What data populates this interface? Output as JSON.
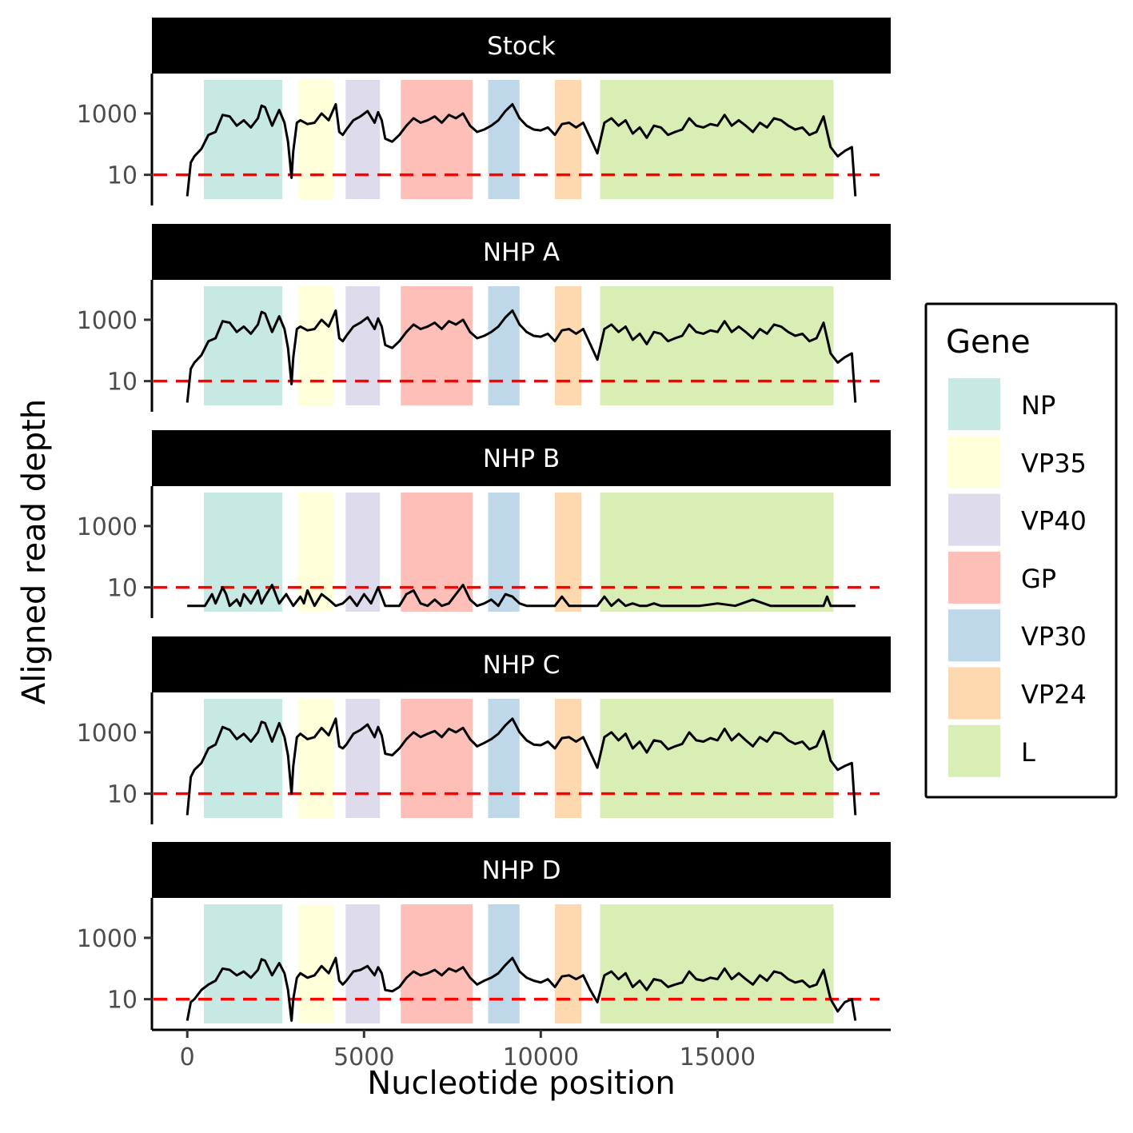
{
  "chart_data": {
    "type": "line",
    "y_scale": "log10",
    "threshold": 10,
    "threshold_color": "#ff0000",
    "xlim": [
      -1000,
      19900
    ],
    "ylim": [
      1,
      20000
    ],
    "x_ticks": [
      0,
      5000,
      10000,
      15000
    ],
    "x_tick_labels": [
      "0",
      "5000",
      "10000",
      "15000"
    ],
    "y_ticks": [
      10,
      1000
    ],
    "y_tick_labels": [
      "10",
      "1000"
    ],
    "xlabel": "Nucleotide position",
    "ylabel": "Aligned read depth",
    "legend": {
      "title": "Gene",
      "position": "right"
    },
    "genes": [
      {
        "name": "NP",
        "start": 470,
        "end": 2690,
        "color": "#8dd3c7"
      },
      {
        "name": "VP35",
        "start": 3130,
        "end": 4150,
        "color": "#ffffb3"
      },
      {
        "name": "VP40",
        "start": 4480,
        "end": 5450,
        "color": "#bebada"
      },
      {
        "name": "GP",
        "start": 6040,
        "end": 8070,
        "color": "#fb8072"
      },
      {
        "name": "VP30",
        "start": 8510,
        "end": 9400,
        "color": "#80b1d3"
      },
      {
        "name": "VP24",
        "start": 10400,
        "end": 11150,
        "color": "#fdb462"
      },
      {
        "name": "L",
        "start": 11680,
        "end": 18280,
        "color": "#b3de69"
      }
    ],
    "panels": [
      {
        "name": "Stock",
        "x": [
          0,
          100,
          200,
          400,
          600,
          800,
          1000,
          1200,
          1400,
          1600,
          1800,
          2000,
          2100,
          2200,
          2400,
          2600,
          2750,
          2850,
          2950,
          3000,
          3100,
          3200,
          3400,
          3600,
          3800,
          4000,
          4200,
          4300,
          4400,
          4500,
          4700,
          4900,
          5100,
          5300,
          5400,
          5500,
          5600,
          5800,
          6000,
          6200,
          6400,
          6600,
          6800,
          7000,
          7200,
          7400,
          7600,
          7800,
          8000,
          8200,
          8400,
          8600,
          8800,
          9000,
          9200,
          9400,
          9600,
          9800,
          10000,
          10200,
          10400,
          10600,
          10800,
          11000,
          11200,
          11400,
          11600,
          11800,
          12000,
          12200,
          12400,
          12600,
          12800,
          13000,
          13200,
          13400,
          13600,
          13800,
          14000,
          14200,
          14400,
          14600,
          14800,
          15000,
          15200,
          15400,
          15600,
          15800,
          16000,
          16200,
          16400,
          16600,
          16800,
          17000,
          17200,
          17400,
          17600,
          17800,
          18000,
          18200,
          18400,
          18600,
          18800,
          18900
        ],
        "y": [
          2,
          25,
          40,
          70,
          200,
          250,
          900,
          800,
          400,
          600,
          350,
          700,
          1800,
          1600,
          400,
          1300,
          500,
          120,
          8,
          60,
          500,
          600,
          450,
          500,
          1000,
          600,
          2000,
          250,
          200,
          300,
          600,
          800,
          1200,
          500,
          1100,
          600,
          150,
          120,
          200,
          400,
          700,
          500,
          600,
          800,
          500,
          900,
          700,
          1000,
          400,
          250,
          300,
          400,
          600,
          1200,
          2000,
          700,
          400,
          300,
          280,
          350,
          200,
          450,
          500,
          350,
          500,
          160,
          50,
          500,
          700,
          400,
          600,
          220,
          350,
          160,
          400,
          350,
          200,
          250,
          300,
          700,
          400,
          350,
          450,
          400,
          900,
          400,
          600,
          400,
          250,
          500,
          350,
          700,
          600,
          400,
          300,
          350,
          200,
          250,
          800,
          80,
          40,
          60,
          80,
          2
        ]
      },
      {
        "name": "NHP A",
        "x": [
          0,
          100,
          200,
          400,
          600,
          800,
          1000,
          1200,
          1400,
          1600,
          1800,
          2000,
          2100,
          2200,
          2400,
          2600,
          2750,
          2850,
          2950,
          3000,
          3100,
          3200,
          3400,
          3600,
          3800,
          4000,
          4200,
          4300,
          4400,
          4500,
          4700,
          4900,
          5100,
          5300,
          5400,
          5500,
          5600,
          5800,
          6000,
          6200,
          6400,
          6600,
          6800,
          7000,
          7200,
          7400,
          7600,
          7800,
          8000,
          8200,
          8400,
          8600,
          8800,
          9000,
          9200,
          9400,
          9600,
          9800,
          10000,
          10200,
          10400,
          10600,
          10800,
          11000,
          11200,
          11400,
          11600,
          11800,
          12000,
          12200,
          12400,
          12600,
          12800,
          13000,
          13200,
          13400,
          13600,
          13800,
          14000,
          14200,
          14400,
          14600,
          14800,
          15000,
          15200,
          15400,
          15600,
          15800,
          16000,
          16200,
          16400,
          16600,
          16800,
          17000,
          17200,
          17400,
          17600,
          17800,
          18000,
          18200,
          18400,
          18600,
          18800,
          18900
        ],
        "y": [
          2,
          25,
          40,
          70,
          200,
          250,
          900,
          800,
          400,
          600,
          350,
          700,
          1800,
          1600,
          400,
          1300,
          500,
          120,
          8,
          60,
          500,
          600,
          450,
          500,
          1000,
          600,
          2000,
          250,
          200,
          300,
          600,
          800,
          1200,
          500,
          1100,
          600,
          150,
          120,
          200,
          400,
          700,
          500,
          600,
          800,
          500,
          900,
          700,
          1000,
          400,
          250,
          300,
          400,
          600,
          1200,
          2000,
          700,
          400,
          300,
          280,
          350,
          200,
          450,
          500,
          350,
          500,
          160,
          50,
          500,
          700,
          400,
          600,
          220,
          350,
          160,
          400,
          350,
          200,
          250,
          300,
          700,
          400,
          350,
          450,
          400,
          900,
          400,
          600,
          400,
          250,
          500,
          350,
          700,
          600,
          400,
          300,
          350,
          200,
          250,
          800,
          80,
          40,
          60,
          80,
          2
        ]
      },
      {
        "name": "NHP B",
        "x": [
          0,
          500,
          700,
          800,
          1000,
          1100,
          1200,
          1400,
          1500,
          1600,
          1800,
          2000,
          2100,
          2200,
          2400,
          2600,
          2800,
          3000,
          3200,
          3300,
          3400,
          3600,
          3800,
          4000,
          4200,
          4400,
          4600,
          4800,
          5000,
          5200,
          5400,
          5600,
          5800,
          6000,
          6200,
          6400,
          6600,
          6800,
          7000,
          7200,
          7400,
          7600,
          7800,
          8000,
          8200,
          8400,
          8600,
          8800,
          9000,
          9200,
          9400,
          9600,
          9800,
          10000,
          10200,
          10400,
          10600,
          10800,
          11000,
          11200,
          11400,
          11600,
          11800,
          12000,
          12200,
          12400,
          12600,
          12800,
          13000,
          13200,
          13400,
          13600,
          13800,
          14000,
          14500,
          15000,
          15500,
          16000,
          16500,
          17000,
          17500,
          18000,
          18100,
          18200,
          18400,
          18900
        ],
        "y": [
          2.5,
          2.5,
          6,
          3,
          10,
          6,
          2.5,
          4,
          2.5,
          6,
          3,
          8,
          3,
          5,
          12,
          3,
          6,
          2.5,
          5,
          3,
          8,
          2.5,
          6,
          4,
          2.5,
          3,
          5,
          2.5,
          6,
          3,
          10,
          2.5,
          2.5,
          2.5,
          6,
          8,
          3,
          2.5,
          4,
          2.5,
          3,
          6,
          12,
          4,
          2.5,
          3,
          4,
          2.5,
          6,
          5,
          3,
          2.5,
          2.5,
          2.5,
          2.5,
          2.5,
          5,
          2.5,
          2.5,
          2.5,
          2.5,
          2.5,
          5,
          2.5,
          4,
          2.5,
          3,
          2.5,
          2.5,
          3,
          2.5,
          2.5,
          2.5,
          2.5,
          2.5,
          3,
          2.5,
          4,
          2.5,
          2.5,
          2.5,
          2.5,
          5,
          2.5,
          2.5,
          2.5
        ]
      },
      {
        "name": "NHP C",
        "x": [
          0,
          100,
          200,
          400,
          600,
          800,
          1000,
          1200,
          1400,
          1600,
          1800,
          2000,
          2100,
          2200,
          2400,
          2600,
          2750,
          2850,
          2950,
          3000,
          3100,
          3200,
          3400,
          3600,
          3800,
          4000,
          4200,
          4300,
          4400,
          4500,
          4700,
          4900,
          5100,
          5300,
          5400,
          5500,
          5600,
          5800,
          6000,
          6200,
          6400,
          6600,
          6800,
          7000,
          7200,
          7400,
          7600,
          7800,
          8000,
          8200,
          8400,
          8600,
          8800,
          9000,
          9200,
          9400,
          9600,
          9800,
          10000,
          10200,
          10400,
          10600,
          10800,
          11000,
          11200,
          11400,
          11600,
          11800,
          12000,
          12200,
          12400,
          12600,
          12800,
          13000,
          13200,
          13400,
          13600,
          13800,
          14000,
          14200,
          14400,
          14600,
          14800,
          15000,
          15200,
          15400,
          15600,
          15800,
          16000,
          16200,
          16400,
          16600,
          16800,
          17000,
          17200,
          17400,
          17600,
          17800,
          18000,
          18200,
          18400,
          18600,
          18800,
          18900
        ],
        "y": [
          2,
          35,
          60,
          100,
          300,
          400,
          1500,
          1200,
          600,
          900,
          500,
          1000,
          2200,
          2000,
          500,
          2000,
          700,
          180,
          10,
          80,
          700,
          900,
          600,
          700,
          1400,
          800,
          2800,
          350,
          300,
          400,
          900,
          1200,
          1800,
          700,
          1500,
          800,
          200,
          180,
          300,
          600,
          1000,
          700,
          900,
          1100,
          700,
          1300,
          1000,
          1400,
          600,
          350,
          450,
          600,
          900,
          1700,
          2800,
          1000,
          550,
          400,
          380,
          500,
          300,
          650,
          700,
          500,
          700,
          220,
          70,
          700,
          1000,
          550,
          900,
          300,
          500,
          220,
          550,
          500,
          280,
          350,
          420,
          1000,
          550,
          500,
          650,
          550,
          1300,
          550,
          900,
          550,
          350,
          700,
          500,
          1000,
          900,
          550,
          420,
          500,
          280,
          350,
          1100,
          120,
          60,
          80,
          100,
          2
        ]
      },
      {
        "name": "NHP D",
        "x": [
          0,
          100,
          200,
          400,
          600,
          800,
          1000,
          1200,
          1400,
          1600,
          1800,
          2000,
          2100,
          2200,
          2400,
          2600,
          2750,
          2850,
          2950,
          3000,
          3100,
          3200,
          3400,
          3600,
          3800,
          4000,
          4200,
          4300,
          4400,
          4500,
          4700,
          4900,
          5100,
          5300,
          5400,
          5500,
          5600,
          5800,
          6000,
          6200,
          6400,
          6600,
          6800,
          7000,
          7200,
          7400,
          7600,
          7800,
          8000,
          8200,
          8400,
          8600,
          8800,
          9000,
          9200,
          9400,
          9600,
          9800,
          10000,
          10200,
          10400,
          10600,
          10800,
          11000,
          11200,
          11400,
          11600,
          11800,
          12000,
          12200,
          12400,
          12600,
          12800,
          13000,
          13200,
          13400,
          13600,
          13800,
          14000,
          14200,
          14400,
          14600,
          14800,
          15000,
          15200,
          15400,
          15600,
          15800,
          16000,
          16200,
          16400,
          16600,
          16800,
          17000,
          17200,
          17400,
          17600,
          17800,
          18000,
          18200,
          18400,
          18600,
          18800,
          18900
        ],
        "y": [
          2,
          8,
          10,
          20,
          30,
          40,
          100,
          90,
          60,
          80,
          50,
          90,
          200,
          180,
          60,
          150,
          70,
          20,
          2,
          10,
          50,
          70,
          50,
          60,
          120,
          70,
          220,
          40,
          30,
          40,
          80,
          90,
          120,
          60,
          110,
          70,
          20,
          18,
          25,
          50,
          80,
          60,
          70,
          90,
          60,
          100,
          80,
          110,
          50,
          30,
          40,
          50,
          70,
          130,
          220,
          80,
          50,
          40,
          35,
          45,
          25,
          55,
          60,
          45,
          60,
          20,
          8,
          60,
          80,
          45,
          70,
          25,
          40,
          20,
          45,
          40,
          25,
          30,
          35,
          80,
          45,
          40,
          50,
          45,
          100,
          45,
          70,
          45,
          30,
          60,
          40,
          80,
          70,
          45,
          35,
          40,
          25,
          30,
          90,
          10,
          4,
          8,
          10,
          2
        ]
      }
    ]
  }
}
